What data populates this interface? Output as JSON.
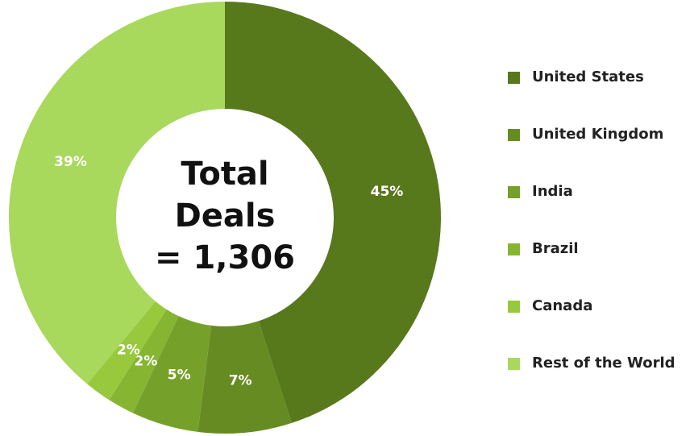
{
  "chart_data": {
    "type": "donut",
    "center_label": [
      "Total",
      "Deals",
      "= 1,306"
    ],
    "categories": [
      "United States",
      "United Kingdom",
      "India",
      "Brazil",
      "Canada",
      "Rest of the World"
    ],
    "values": [
      45,
      7,
      5,
      2,
      2,
      39
    ],
    "value_labels": [
      "45%",
      "7%",
      "5%",
      "2%",
      "2%",
      "39%"
    ],
    "colors": [
      "#58781c",
      "#668b22",
      "#75a12a",
      "#86b532",
      "#98c83c",
      "#a8d85c"
    ],
    "legend": "right"
  }
}
